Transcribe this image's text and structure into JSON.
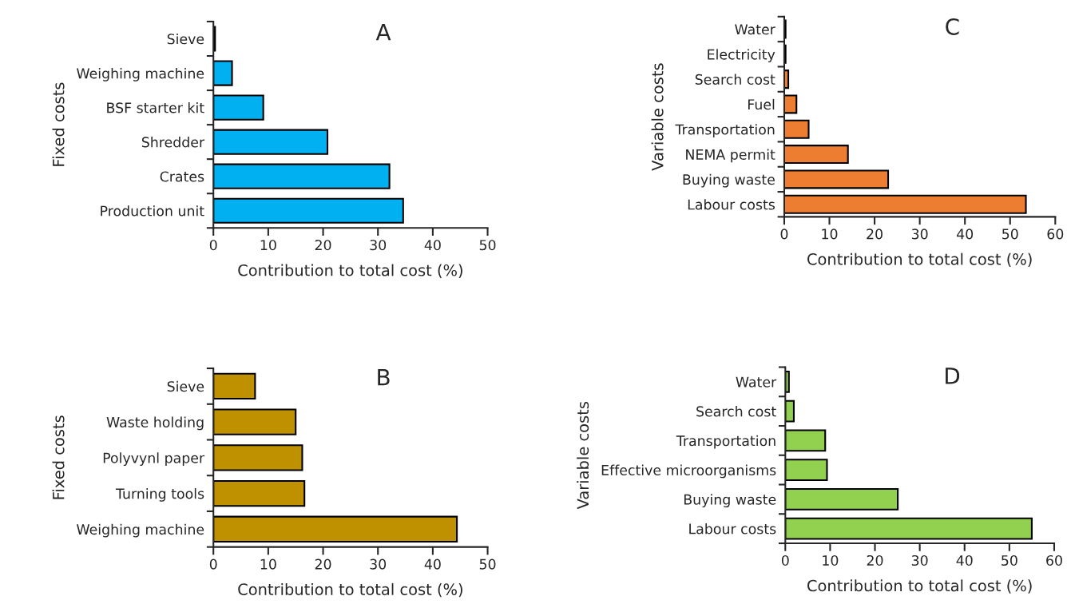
{
  "chart_data": [
    {
      "type": "bar",
      "orientation": "horizontal",
      "title": "A",
      "ylabel": "Fixed costs",
      "xlabel": "Contribution to total cost (%)",
      "categories": [
        "Sieve",
        "Weighing machine",
        "BSF starter kit",
        "Shredder",
        "Crates",
        "Production unit"
      ],
      "values": [
        0.3,
        3.4,
        9.1,
        20.8,
        32.1,
        34.6
      ],
      "color": "#00b0f0",
      "xlim": [
        0,
        50
      ],
      "xticks": [
        0,
        10,
        20,
        30,
        40,
        50
      ],
      "grid": false
    },
    {
      "type": "bar",
      "orientation": "horizontal",
      "title": "C",
      "ylabel": "Variable costs",
      "xlabel": "Contribution to total cost (%)",
      "categories": [
        "Water",
        "Electricity",
        "Search cost",
        "Fuel",
        "Transportation",
        "NEMA permit",
        "Buying waste",
        "Labour costs"
      ],
      "values": [
        0.3,
        0.3,
        0.9,
        2.7,
        5.4,
        14.1,
        23.0,
        53.5
      ],
      "color": "#ed7d31",
      "xlim": [
        0,
        60
      ],
      "xticks": [
        0,
        10,
        20,
        30,
        40,
        50,
        60
      ],
      "grid": false
    },
    {
      "type": "bar",
      "orientation": "horizontal",
      "title": "B",
      "ylabel": "Fixed costs",
      "xlabel": "Contribution to total cost (%)",
      "categories": [
        "Sieve",
        "Waste holding",
        "Polyvynl paper",
        "Turning tools",
        "Weighing machine"
      ],
      "values": [
        7.6,
        15.0,
        16.2,
        16.6,
        44.4
      ],
      "color": "#bf9000",
      "xlim": [
        0,
        50
      ],
      "xticks": [
        0,
        10,
        20,
        30,
        40,
        50
      ],
      "grid": false
    },
    {
      "type": "bar",
      "orientation": "horizontal",
      "title": "D",
      "ylabel": "Variable costs",
      "xlabel": "Contribution to total cost (%)",
      "categories": [
        "Water",
        "Search cost",
        "Transportation",
        "Effective microorganisms",
        "Buying waste",
        "Labour costs"
      ],
      "values": [
        0.8,
        1.9,
        8.9,
        9.3,
        25.1,
        55.0
      ],
      "color": "#92d050",
      "xlim": [
        0,
        60
      ],
      "xticks": [
        0,
        10,
        20,
        30,
        40,
        50,
        60
      ],
      "grid": false
    }
  ]
}
